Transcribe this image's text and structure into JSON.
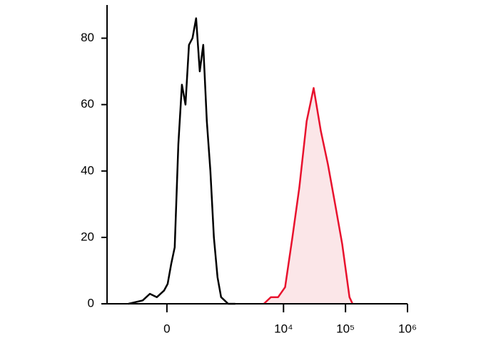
{
  "chart_data": {
    "type": "histogram-overlay",
    "xscale": "biexponential",
    "xlim": [
      -1200,
      1000000
    ],
    "xticks": [
      0,
      {
        "value": 10000,
        "label": "10⁴"
      },
      {
        "value": 100000,
        "label": "10⁵"
      },
      {
        "value": 1000000,
        "label": "10⁶"
      }
    ],
    "ylim": [
      0,
      90
    ],
    "yticks": [
      0,
      20,
      40,
      60,
      80
    ],
    "series": [
      {
        "color": "#000000",
        "fill": "none",
        "x": [
          -518,
          -270,
          -178,
          -100,
          -28,
          7,
          42,
          77,
          115,
          154,
          196,
          241,
          289,
          345,
          407,
          474,
          549,
          635,
          731,
          841,
          966,
          1267,
          1657
        ],
        "values": [
          0,
          1,
          3,
          2,
          4,
          6,
          12,
          17,
          48,
          66,
          60,
          78,
          80,
          86,
          70,
          78,
          55,
          40,
          20,
          8,
          2,
          0,
          0
        ]
      },
      {
        "color": "#e8112d",
        "fill": "#fbe6e8",
        "x": [
          4810,
          6260,
          8180,
          10600,
          13900,
          18000,
          23600,
          30600,
          40000,
          52000,
          68100,
          88400,
          116000,
          130000
        ],
        "values": [
          0,
          2,
          2,
          5,
          20,
          35,
          55,
          65,
          52,
          42,
          30,
          18,
          2,
          0
        ]
      }
    ]
  }
}
